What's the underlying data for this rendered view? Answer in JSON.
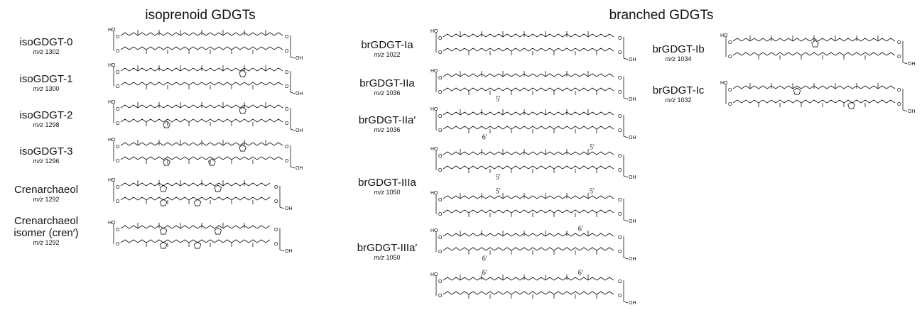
{
  "headers": {
    "isoprenoid": "isoprenoid GDGTs",
    "branched": "branched GDGTs"
  },
  "compounds": [
    {
      "name": "isoGDGT-0",
      "mz_prefix": "m/z",
      "mz": "1302",
      "structures": [
        {
          "atoms": [
            "HO",
            "O",
            "O",
            "O",
            "O",
            "OH"
          ]
        }
      ]
    },
    {
      "name": "isoGDGT-1",
      "mz_prefix": "m/z",
      "mz": "1300",
      "structures": [
        {
          "atoms": [
            "HO",
            "O",
            "O",
            "O",
            "O",
            "OH"
          ]
        }
      ]
    },
    {
      "name": "isoGDGT-2",
      "mz_prefix": "m/z",
      "mz": "1298",
      "structures": [
        {
          "atoms": [
            "HO",
            "O",
            "O",
            "O",
            "O",
            "OH"
          ]
        }
      ]
    },
    {
      "name": "isoGDGT-3",
      "mz_prefix": "m/z",
      "mz": "1296",
      "structures": [
        {
          "atoms": [
            "HO",
            "O",
            "O",
            "O",
            "O",
            "OH"
          ]
        }
      ]
    },
    {
      "name": "Crenarchaeol",
      "mz_prefix": "m/z",
      "mz": "1292",
      "structures": [
        {
          "atoms": [
            "HO",
            "O",
            "O",
            "O",
            "O",
            "OH"
          ]
        }
      ]
    },
    {
      "name": [
        "Crenarchaeol",
        "isomer (cren′)"
      ],
      "mz_prefix": "m/z",
      "mz": "1292",
      "structures": [
        {
          "atoms": [
            "HO",
            "O",
            "O",
            "O",
            "O",
            "OH"
          ]
        }
      ]
    },
    {
      "name": "brGDGT-Ia",
      "mz_prefix": "m/z",
      "mz": "1022",
      "structures": [
        {
          "atoms": [
            "HO",
            "O",
            "O",
            "O",
            "O",
            "OH"
          ]
        }
      ]
    },
    {
      "name": "brGDGT-IIa",
      "mz_prefix": "m/z",
      "mz": "1036",
      "structures": [
        {
          "atoms": [
            "HO",
            "O",
            "O",
            "O",
            "O",
            "OH"
          ],
          "positions": [
            "5'"
          ]
        }
      ]
    },
    {
      "name": "brGDGT-IIa′",
      "mz_prefix": "m/z",
      "mz": "1036",
      "structures": [
        {
          "atoms": [
            "HO",
            "O",
            "O",
            "O",
            "O",
            "OH"
          ],
          "positions": [
            "6'"
          ]
        }
      ]
    },
    {
      "name": "brGDGT-IIIa",
      "mz_prefix": "m/z",
      "mz": "1050",
      "structures": [
        {
          "atoms": [
            "HO",
            "O",
            "O",
            "O",
            "O",
            "OH"
          ],
          "positions": [
            "5'",
            "5'"
          ]
        },
        {
          "atoms": [
            "HO",
            "O",
            "O",
            "O",
            "O",
            "OH"
          ],
          "positions": [
            "5'",
            "5'"
          ]
        }
      ]
    },
    {
      "name": "brGDGT-IIIa′",
      "mz_prefix": "m/z",
      "mz": "1050",
      "structures": [
        {
          "atoms": [
            "HO",
            "O",
            "O",
            "O",
            "O",
            "OH"
          ],
          "positions": [
            "6'",
            "6'"
          ]
        },
        {
          "atoms": [
            "HO",
            "O",
            "O",
            "O",
            "O",
            "OH"
          ],
          "positions": [
            "6'",
            "6'"
          ]
        }
      ]
    },
    {
      "name": "brGDGT-Ib",
      "mz_prefix": "m/z",
      "mz": "1034",
      "structures": [
        {
          "atoms": [
            "HO",
            "O",
            "O",
            "O",
            "O",
            "OH"
          ]
        }
      ]
    },
    {
      "name": "brGDGT-Ic",
      "mz_prefix": "m/z",
      "mz": "1032",
      "structures": [
        {
          "atoms": [
            "HO",
            "O",
            "O",
            "O",
            "O",
            "OH"
          ]
        }
      ]
    }
  ]
}
